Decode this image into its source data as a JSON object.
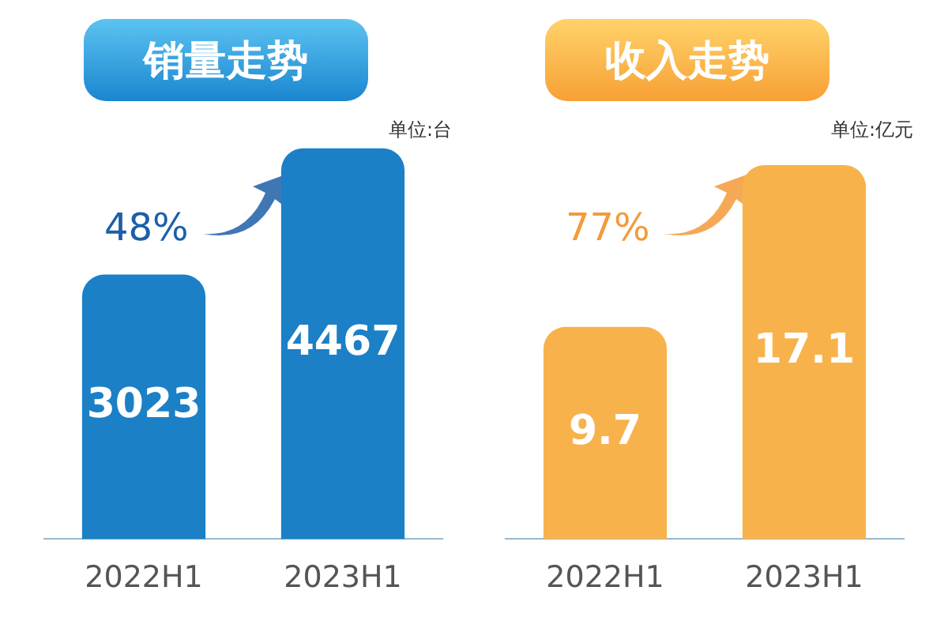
{
  "chart_data": [
    {
      "type": "bar",
      "title": "销量走势",
      "categories": [
        "2022H1",
        "2023H1"
      ],
      "values": [
        3023,
        4467
      ],
      "color": "#1b80c6",
      "data_labels": true,
      "grid": false,
      "tick_labels": "x",
      "annotations": [
        "单位:台",
        "48%"
      ]
    },
    {
      "type": "bar",
      "title": "收入走势",
      "categories": [
        "2022H1",
        "2023H1"
      ],
      "values": [
        9.7,
        17.1
      ],
      "color": "#f8b24c",
      "data_labels": true,
      "grid": false,
      "tick_labels": "x",
      "annotations": [
        "单位:亿元",
        "77%"
      ]
    }
  ]
}
